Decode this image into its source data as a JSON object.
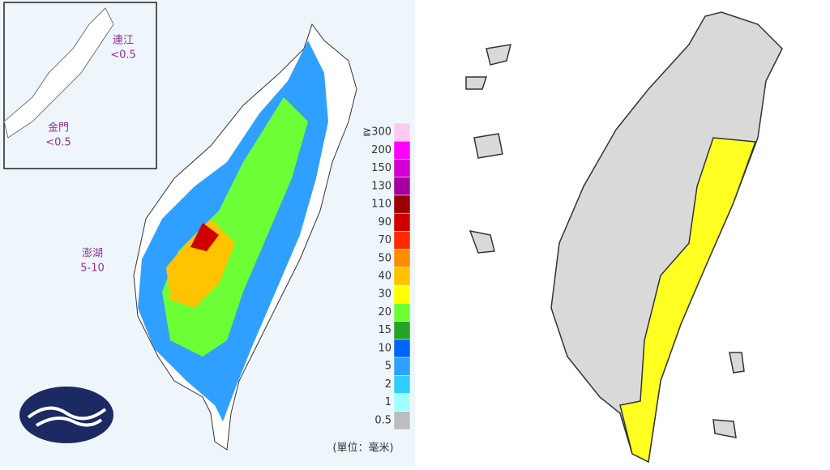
{
  "islands": {
    "lienchiang": {
      "name": "連江",
      "value": "<0.5"
    },
    "kinmen": {
      "name": "金門",
      "value": "<0.5"
    },
    "penghu": {
      "name": "澎湖",
      "value": "5-10"
    }
  },
  "legend": {
    "items": [
      {
        "label": "≧300",
        "color": "#ffc8f0"
      },
      {
        "label": "200",
        "color": "#ff00ff"
      },
      {
        "label": "150",
        "color": "#d100d1"
      },
      {
        "label": "130",
        "color": "#a3009f"
      },
      {
        "label": "110",
        "color": "#9b0000"
      },
      {
        "label": "90",
        "color": "#d10000"
      },
      {
        "label": "70",
        "color": "#ff2a00"
      },
      {
        "label": "50",
        "color": "#ff8c00"
      },
      {
        "label": "40",
        "color": "#ffc300"
      },
      {
        "label": "30",
        "color": "#ffff00"
      },
      {
        "label": "20",
        "color": "#6dff35"
      },
      {
        "label": "15",
        "color": "#24a324"
      },
      {
        "label": "10",
        "color": "#0064ff"
      },
      {
        "label": "5",
        "color": "#2fa0ff"
      },
      {
        "label": "2",
        "color": "#2fd0ff"
      },
      {
        "label": "1",
        "color": "#a0ffff"
      },
      {
        "label": "0.5",
        "color": "#bdbdbd"
      }
    ],
    "unit": "(單位：毫米)"
  }
}
